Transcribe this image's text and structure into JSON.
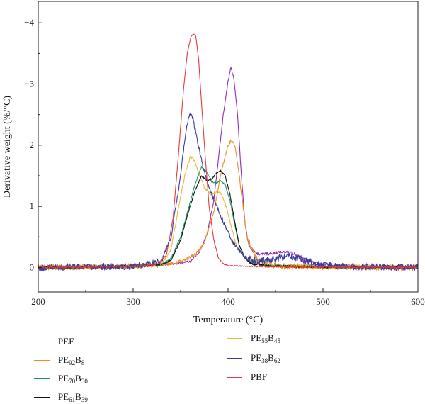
{
  "chart_data": {
    "type": "line",
    "title": "",
    "xlabel": "Temperature (°C)",
    "ylabel": "Derivative weight (%/°C)",
    "xlim": [
      200,
      600
    ],
    "ylim": [
      0.4,
      -4.35
    ],
    "y_axis_inverted": true,
    "x_ticks": [
      "200",
      "300",
      "400",
      "500",
      "600"
    ],
    "y_ticks": [
      "0",
      "−1",
      "−2",
      "−3",
      "−4"
    ],
    "x_tick_values": [
      200,
      300,
      400,
      500,
      600
    ],
    "y_tick_values": [
      0,
      -1,
      -2,
      -3,
      -4
    ],
    "grid": false,
    "legend_placement": "below",
    "series": [
      {
        "name": "PEF",
        "label_base": "PEF",
        "label_sub": "",
        "color": "#8b2fb8",
        "noise": 0.015,
        "x": [
          200,
          300,
          340,
          360,
          370,
          378,
          385,
          390,
          395,
          400,
          403,
          406,
          410,
          414,
          418,
          422,
          430,
          440,
          450,
          460,
          470,
          480,
          490,
          500,
          520,
          550,
          580,
          600
        ],
        "y": [
          0,
          -0.02,
          -0.05,
          -0.1,
          -0.25,
          -0.55,
          -1.1,
          -1.8,
          -2.5,
          -3.05,
          -3.27,
          -3.1,
          -2.5,
          -1.5,
          -0.7,
          -0.35,
          -0.22,
          -0.22,
          -0.24,
          -0.26,
          -0.22,
          -0.15,
          -0.08,
          -0.04,
          -0.02,
          -0.01,
          -0.01,
          0
        ]
      },
      {
        "name": "PE92B8",
        "label_base": "PE",
        "label_sub": "92",
        "label_base2": "B",
        "label_sub2": "8",
        "color": "#f08c1e",
        "noise": 0.03,
        "x": [
          200,
          300,
          330,
          350,
          365,
          375,
          385,
          392,
          398,
          403,
          407,
          410,
          415,
          420,
          430,
          440,
          460,
          500,
          600
        ],
        "y": [
          0,
          -0.02,
          -0.05,
          -0.1,
          -0.2,
          -0.4,
          -0.9,
          -1.5,
          -1.9,
          -2.08,
          -2.0,
          -1.7,
          -1.1,
          -0.5,
          -0.15,
          -0.05,
          -0.02,
          -0.01,
          0
        ]
      },
      {
        "name": "PE70B30",
        "label_base": "PE",
        "label_sub": "70",
        "label_base2": "B",
        "label_sub2": "30",
        "color": "#139a6a",
        "noise": 0.012,
        "x": [
          200,
          300,
          330,
          340,
          350,
          358,
          365,
          372,
          378,
          383,
          387,
          392,
          397,
          402,
          407,
          412,
          418,
          425,
          440,
          460,
          500,
          600
        ],
        "y": [
          0,
          -0.02,
          -0.05,
          -0.15,
          -0.5,
          -0.95,
          -1.35,
          -1.65,
          -1.55,
          -1.4,
          -1.38,
          -1.42,
          -1.35,
          -1.1,
          -0.7,
          -0.35,
          -0.15,
          -0.08,
          -0.03,
          -0.02,
          -0.01,
          0
        ]
      },
      {
        "name": "PE61B39",
        "label_base": "PE",
        "label_sub": "61",
        "label_base2": "B",
        "label_sub2": "39",
        "color": "#111111",
        "noise": 0.012,
        "x": [
          200,
          300,
          330,
          340,
          350,
          358,
          365,
          372,
          378,
          383,
          388,
          392,
          397,
          402,
          407,
          412,
          418,
          425,
          440,
          460,
          500,
          600
        ],
        "y": [
          0,
          -0.02,
          -0.05,
          -0.12,
          -0.45,
          -0.9,
          -1.25,
          -1.5,
          -1.42,
          -1.45,
          -1.55,
          -1.58,
          -1.5,
          -1.2,
          -0.75,
          -0.35,
          -0.15,
          -0.06,
          -0.03,
          -0.02,
          -0.01,
          0
        ]
      },
      {
        "name": "PE55B45",
        "label_base": "PE",
        "label_sub": "55",
        "label_base2": "B",
        "label_sub2": "45",
        "color": "#f0b43c",
        "noise": 0.02,
        "x": [
          200,
          300,
          330,
          340,
          348,
          355,
          360,
          363,
          368,
          375,
          382,
          388,
          392,
          397,
          402,
          408,
          415,
          425,
          440,
          460,
          500,
          600
        ],
        "y": [
          0,
          -0.02,
          -0.05,
          -0.3,
          -1.0,
          -1.55,
          -1.8,
          -1.8,
          -1.6,
          -1.3,
          -1.2,
          -1.23,
          -1.22,
          -1.05,
          -0.75,
          -0.4,
          -0.2,
          -0.1,
          -0.05,
          -0.03,
          -0.01,
          0
        ]
      },
      {
        "name": "PE38B62",
        "label_base": "PE",
        "label_sub": "38",
        "label_base2": "B",
        "label_sub2": "62",
        "color": "#3a3aa0",
        "noise": 0.035,
        "x": [
          200,
          300,
          330,
          340,
          348,
          353,
          357,
          360,
          363,
          366,
          370,
          375,
          380,
          388,
          395,
          402,
          410,
          420,
          430,
          450,
          465,
          475,
          485,
          500,
          520,
          550,
          600
        ],
        "y": [
          0,
          -0.02,
          -0.1,
          -0.5,
          -1.3,
          -1.9,
          -2.35,
          -2.52,
          -2.45,
          -2.2,
          -1.9,
          -1.55,
          -1.3,
          -1.0,
          -0.75,
          -0.5,
          -0.3,
          -0.15,
          -0.1,
          -0.15,
          -0.18,
          -0.15,
          -0.1,
          -0.04,
          -0.02,
          -0.01,
          0
        ]
      },
      {
        "name": "PBF",
        "label_base": "PBF",
        "label_sub": "",
        "color": "#e83a3a",
        "noise": 0.008,
        "x": [
          200,
          300,
          325,
          335,
          342,
          348,
          353,
          357,
          361,
          364,
          366,
          369,
          372,
          376,
          380,
          385,
          390,
          395,
          400,
          420,
          500,
          600
        ],
        "y": [
          0,
          -0.02,
          -0.05,
          -0.2,
          -0.8,
          -1.9,
          -2.9,
          -3.5,
          -3.78,
          -3.82,
          -3.78,
          -3.4,
          -2.7,
          -1.8,
          -1.0,
          -0.45,
          -0.15,
          -0.06,
          -0.03,
          -0.02,
          -0.01,
          0
        ]
      }
    ]
  }
}
